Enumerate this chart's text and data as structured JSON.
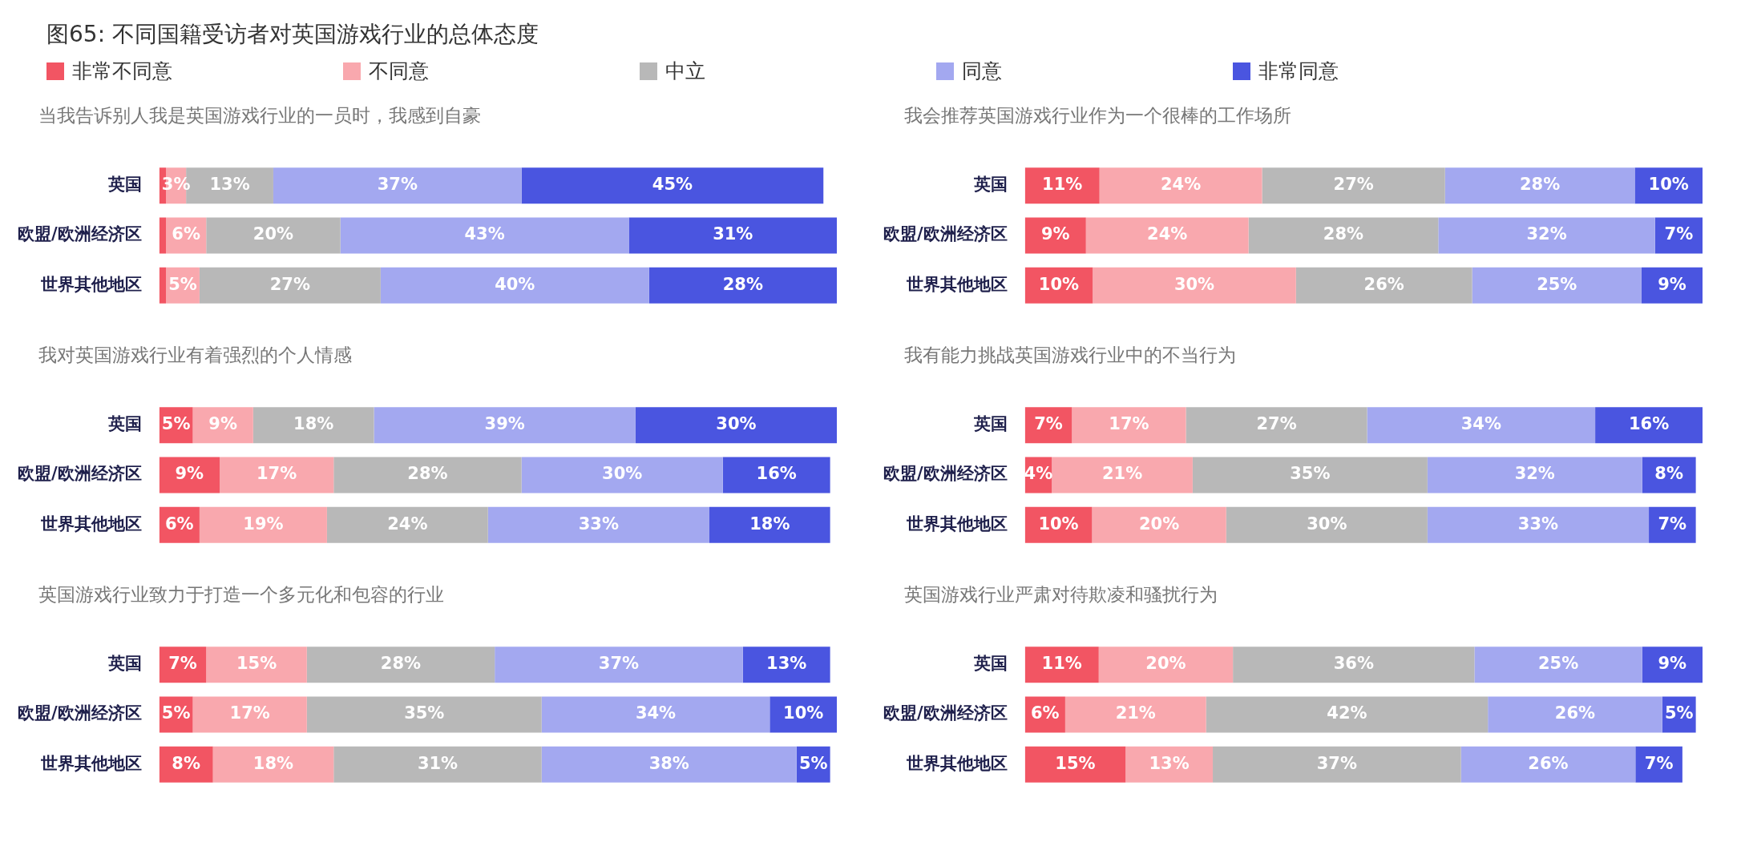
{
  "chart_data": [
    {
      "type": "bar",
      "orientation": "horizontal",
      "stacked": true,
      "title": "图65: 不同国籍受访者对英国游戏行业的总体态度",
      "subtitle": "当我告诉别人我是英国游戏行业的一员时，我感到自豪",
      "legend": "top",
      "tick_labels": "y",
      "categories": [
        "英国",
        "欧盟/欧洲经济区",
        "世界其他地区"
      ],
      "series": [
        {
          "name": "非常不同意",
          "color": "#f25563",
          "values": [
            1,
            1,
            1
          ],
          "value_labels": [
            null,
            null,
            null
          ]
        },
        {
          "name": "不同意",
          "color": "#f9a8ae",
          "values": [
            3,
            6,
            5
          ],
          "value_labels": [
            "3%",
            "6%",
            "5%"
          ]
        },
        {
          "name": "中立",
          "color": "#b8b8b8",
          "values": [
            13,
            20,
            27
          ],
          "value_labels": [
            "13%",
            "20%",
            "27%"
          ]
        },
        {
          "name": "同意",
          "color": "#a3a8f0",
          "values": [
            37,
            43,
            40
          ],
          "value_labels": [
            "37%",
            "43%",
            "40%"
          ]
        },
        {
          "name": "非常同意",
          "color": "#4a55e0",
          "values": [
            45,
            31,
            28
          ],
          "value_labels": [
            "45%",
            "31%",
            "28%"
          ]
        }
      ]
    },
    {
      "type": "bar",
      "orientation": "horizontal",
      "stacked": true,
      "subtitle": "我会推荐英国游戏行业作为一个很棒的工作场所",
      "tick_labels": "y",
      "categories": [
        "英国",
        "欧盟/欧洲经济区",
        "世界其他地区"
      ],
      "series": [
        {
          "color": "#f25563",
          "values": [
            11,
            9,
            10
          ],
          "value_labels": [
            "11%",
            "9%",
            "10%"
          ]
        },
        {
          "color": "#f9a8ae",
          "values": [
            24,
            24,
            30
          ],
          "value_labels": [
            "24%",
            "24%",
            "30%"
          ]
        },
        {
          "color": "#b8b8b8",
          "values": [
            27,
            28,
            26
          ],
          "value_labels": [
            "27%",
            "28%",
            "26%"
          ]
        },
        {
          "color": "#a3a8f0",
          "values": [
            28,
            32,
            25
          ],
          "value_labels": [
            "28%",
            "32%",
            "25%"
          ]
        },
        {
          "color": "#4a55e0",
          "values": [
            10,
            7,
            9
          ],
          "value_labels": [
            "10%",
            "7%",
            "9%"
          ]
        }
      ]
    },
    {
      "type": "bar",
      "orientation": "horizontal",
      "stacked": true,
      "subtitle": "我对英国游戏行业有着强烈的个人情感",
      "tick_labels": "y",
      "categories": [
        "英国",
        "欧盟/欧洲经济区",
        "世界其他地区"
      ],
      "series": [
        {
          "color": "#f25563",
          "values": [
            5,
            9,
            6
          ],
          "value_labels": [
            "5%",
            "9%",
            "6%"
          ]
        },
        {
          "color": "#f9a8ae",
          "values": [
            9,
            17,
            19
          ],
          "value_labels": [
            "9%",
            "17%",
            "19%"
          ]
        },
        {
          "color": "#b8b8b8",
          "values": [
            18,
            28,
            24
          ],
          "value_labels": [
            "18%",
            "28%",
            "24%"
          ]
        },
        {
          "color": "#a3a8f0",
          "values": [
            39,
            30,
            33
          ],
          "value_labels": [
            "39%",
            "30%",
            "33%"
          ]
        },
        {
          "color": "#4a55e0",
          "values": [
            30,
            16,
            18
          ],
          "value_labels": [
            "30%",
            "16%",
            "18%"
          ]
        }
      ]
    },
    {
      "type": "bar",
      "orientation": "horizontal",
      "stacked": true,
      "subtitle": "我有能力挑战英国游戏行业中的不当行为",
      "tick_labels": "y",
      "categories": [
        "英国",
        "欧盟/欧洲经济区",
        "世界其他地区"
      ],
      "series": [
        {
          "color": "#f25563",
          "values": [
            7,
            4,
            10
          ],
          "value_labels": [
            "7%",
            "4%",
            "10%"
          ]
        },
        {
          "color": "#f9a8ae",
          "values": [
            17,
            21,
            20
          ],
          "value_labels": [
            "17%",
            "21%",
            "20%"
          ]
        },
        {
          "color": "#b8b8b8",
          "values": [
            27,
            35,
            30
          ],
          "value_labels": [
            "27%",
            "35%",
            "30%"
          ]
        },
        {
          "color": "#a3a8f0",
          "values": [
            34,
            32,
            33
          ],
          "value_labels": [
            "34%",
            "32%",
            "33%"
          ]
        },
        {
          "color": "#4a55e0",
          "values": [
            16,
            8,
            7
          ],
          "value_labels": [
            "16%",
            "8%",
            "7%"
          ]
        }
      ]
    },
    {
      "type": "bar",
      "orientation": "horizontal",
      "stacked": true,
      "subtitle": "英国游戏行业致力于打造一个多元化和包容的行业",
      "tick_labels": "y",
      "categories": [
        "英国",
        "欧盟/欧洲经济区",
        "世界其他地区"
      ],
      "series": [
        {
          "color": "#f25563",
          "values": [
            7,
            5,
            8
          ],
          "value_labels": [
            "7%",
            "5%",
            "8%"
          ]
        },
        {
          "color": "#f9a8ae",
          "values": [
            15,
            17,
            18
          ],
          "value_labels": [
            "15%",
            "17%",
            "18%"
          ]
        },
        {
          "color": "#b8b8b8",
          "values": [
            28,
            35,
            31
          ],
          "value_labels": [
            "28%",
            "35%",
            "31%"
          ]
        },
        {
          "color": "#a3a8f0",
          "values": [
            37,
            34,
            38
          ],
          "value_labels": [
            "37%",
            "34%",
            "38%"
          ]
        },
        {
          "color": "#4a55e0",
          "values": [
            13,
            10,
            5
          ],
          "value_labels": [
            "13%",
            "10%",
            "5%"
          ]
        }
      ]
    },
    {
      "type": "bar",
      "orientation": "horizontal",
      "stacked": true,
      "subtitle": "英国游戏行业严肃对待欺凌和骚扰行为",
      "tick_labels": "y",
      "categories": [
        "英国",
        "欧盟/欧洲经济区",
        "世界其他地区"
      ],
      "series": [
        {
          "color": "#f25563",
          "values": [
            11,
            6,
            15
          ],
          "value_labels": [
            "11%",
            "6%",
            "15%"
          ]
        },
        {
          "color": "#f9a8ae",
          "values": [
            20,
            21,
            13
          ],
          "value_labels": [
            "20%",
            "21%",
            "13%"
          ]
        },
        {
          "color": "#b8b8b8",
          "values": [
            36,
            42,
            37
          ],
          "value_labels": [
            "36%",
            "42%",
            "37%"
          ]
        },
        {
          "color": "#a3a8f0",
          "values": [
            25,
            26,
            26
          ],
          "value_labels": [
            "25%",
            "26%",
            "26%"
          ]
        },
        {
          "color": "#4a55e0",
          "values": [
            9,
            5,
            7
          ],
          "value_labels": [
            "9%",
            "5%",
            "7%"
          ]
        }
      ]
    }
  ]
}
